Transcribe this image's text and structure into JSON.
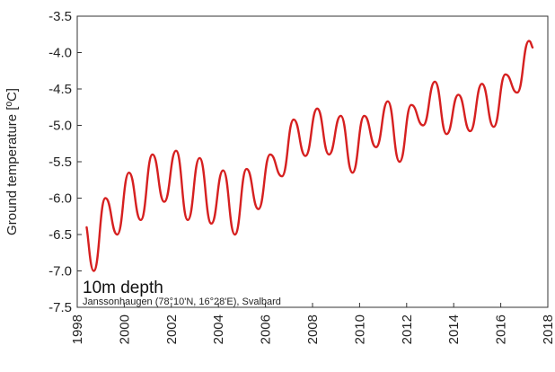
{
  "chart_data": {
    "type": "line",
    "title": "",
    "xlabel": "",
    "ylabel": "Ground temperature [ºC]",
    "xlim": [
      1998,
      2018
    ],
    "ylim": [
      -7.5,
      -3.5
    ],
    "x_ticks": [
      1998,
      2000,
      2002,
      2004,
      2006,
      2008,
      2010,
      2012,
      2014,
      2016,
      2018
    ],
    "y_ticks": [
      -3.5,
      -4.0,
      -4.5,
      -5.0,
      -5.5,
      -6.0,
      -6.5,
      -7.0,
      -7.5
    ],
    "x_tick_labels": [
      "1998",
      "2000",
      "2002",
      "2004",
      "2006",
      "2008",
      "2010",
      "2012",
      "2014",
      "2016",
      "2018"
    ],
    "y_tick_labels": [
      "-3.5",
      "-4.0",
      "-4.5",
      "-5.0",
      "-5.5",
      "-6.0",
      "-6.5",
      "-7.0",
      "-7.5"
    ],
    "grid": false,
    "annotations": [
      "10m depth",
      "Janssonhaugen (78°10'N, 16°28'E), Svalbard"
    ],
    "series": [
      {
        "color": "#d62020",
        "x": [
          1998.4,
          1998.7,
          1999.2,
          1999.7,
          2000.2,
          2000.7,
          2001.2,
          2001.7,
          2002.2,
          2002.7,
          2003.2,
          2003.7,
          2004.2,
          2004.7,
          2005.2,
          2005.7,
          2006.2,
          2006.7,
          2007.2,
          2007.7,
          2008.2,
          2008.7,
          2009.2,
          2009.7,
          2010.2,
          2010.7,
          2011.2,
          2011.7,
          2012.2,
          2012.7,
          2013.2,
          2013.7,
          2014.2,
          2014.7,
          2015.2,
          2015.7,
          2016.2,
          2016.7,
          2017.2,
          2017.35
        ],
        "y": [
          -6.4,
          -7.0,
          -6.0,
          -6.5,
          -5.65,
          -6.3,
          -5.4,
          -6.05,
          -5.35,
          -6.3,
          -5.45,
          -6.35,
          -5.62,
          -6.5,
          -5.6,
          -6.15,
          -5.4,
          -5.7,
          -4.92,
          -5.42,
          -4.77,
          -5.4,
          -4.87,
          -5.65,
          -4.87,
          -5.3,
          -4.67,
          -5.5,
          -4.72,
          -5.0,
          -4.4,
          -5.12,
          -4.58,
          -5.08,
          -4.43,
          -5.02,
          -4.3,
          -4.55,
          -3.84,
          -3.93
        ]
      }
    ]
  }
}
